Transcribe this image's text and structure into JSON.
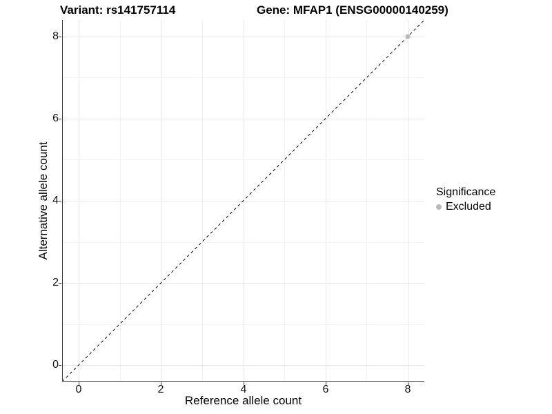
{
  "colors": {
    "background": "#ffffff",
    "axis_line": "#3a3a3a",
    "tick_mark": "#333333",
    "grid_major": "#e7e7e7",
    "grid_minor": "#f3f3f3",
    "reference_line": "#000000",
    "point": "#b9b9b9",
    "text": "#000000"
  },
  "chart_data": {
    "type": "scatter",
    "titles": {
      "left": "Variant: rs141757114",
      "right": "Gene: MFAP1 (ENSG00000140259)"
    },
    "xlabel": "Reference allele count",
    "ylabel": "Alternative allele count",
    "xlim": [
      -0.4,
      8.4
    ],
    "ylim": [
      -0.4,
      8.4
    ],
    "xticks": [
      0,
      2,
      4,
      6,
      8
    ],
    "yticks": [
      0,
      2,
      4,
      6,
      8
    ],
    "xminor": [
      1,
      3,
      5,
      7
    ],
    "yminor": [
      1,
      3,
      5,
      7
    ],
    "grid": true,
    "reference_line": {
      "slope": 1,
      "intercept": 0,
      "style": "dashed"
    },
    "series": [
      {
        "name": "Excluded",
        "color": "#b9b9b9",
        "points": [
          {
            "x": 8,
            "y": 8
          }
        ]
      }
    ],
    "legend": {
      "title": "Significance",
      "position": "right",
      "entries": [
        {
          "label": "Excluded",
          "color": "#b9b9b9"
        }
      ]
    }
  }
}
